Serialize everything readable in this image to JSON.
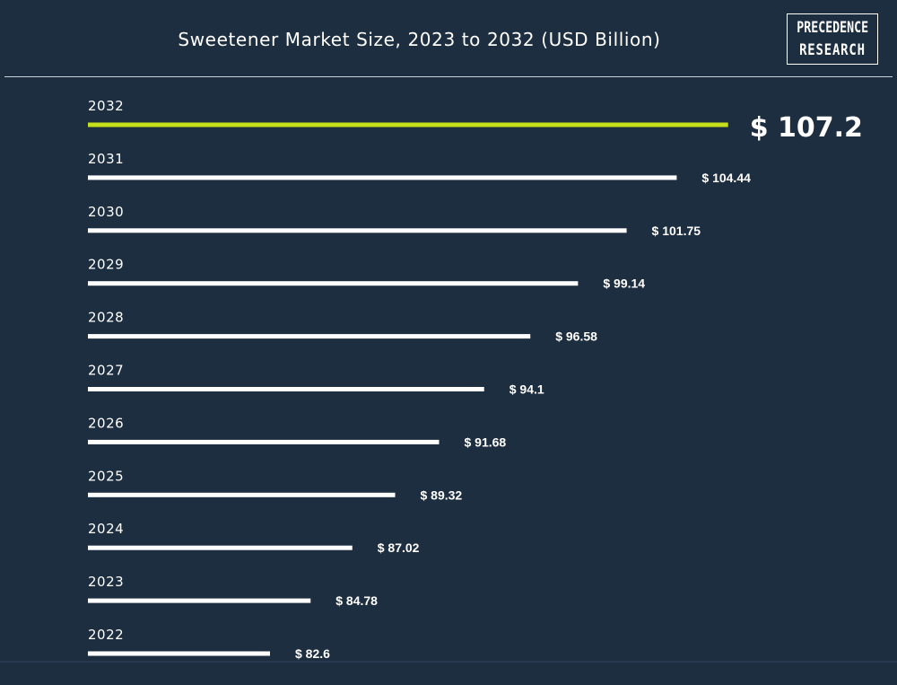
{
  "header": {
    "title": "Sweetener Market Size, 2023 to 2032 (USD Billion)",
    "logo_line1": "PRECEDENCE",
    "logo_line2": "RESEARCH"
  },
  "colors": {
    "background": "#1d2e41",
    "bar": "#ffffff",
    "highlight_bar": "#c6df1b",
    "text": "#ffffff"
  },
  "chart_data": {
    "type": "bar",
    "orientation": "horizontal",
    "title": "Sweetener Market Size, 2023 to 2032 (USD Billion)",
    "categories": [
      "2032",
      "2031",
      "2030",
      "2029",
      "2028",
      "2027",
      "2026",
      "2025",
      "2024",
      "2023",
      "2022"
    ],
    "values": [
      107.2,
      104.44,
      101.75,
      99.14,
      96.58,
      94.1,
      91.68,
      89.32,
      87.02,
      84.78,
      82.6
    ],
    "value_labels": [
      "$ 107.2",
      "$ 104.44",
      "$ 101.75",
      "$ 99.14",
      "$ 96.58",
      "$ 94.1",
      "$ 91.68",
      "$ 89.32",
      "$ 87.02",
      "$ 84.78",
      "$ 82.6"
    ],
    "highlight_category": "2032",
    "grid": false,
    "legend": "none"
  }
}
